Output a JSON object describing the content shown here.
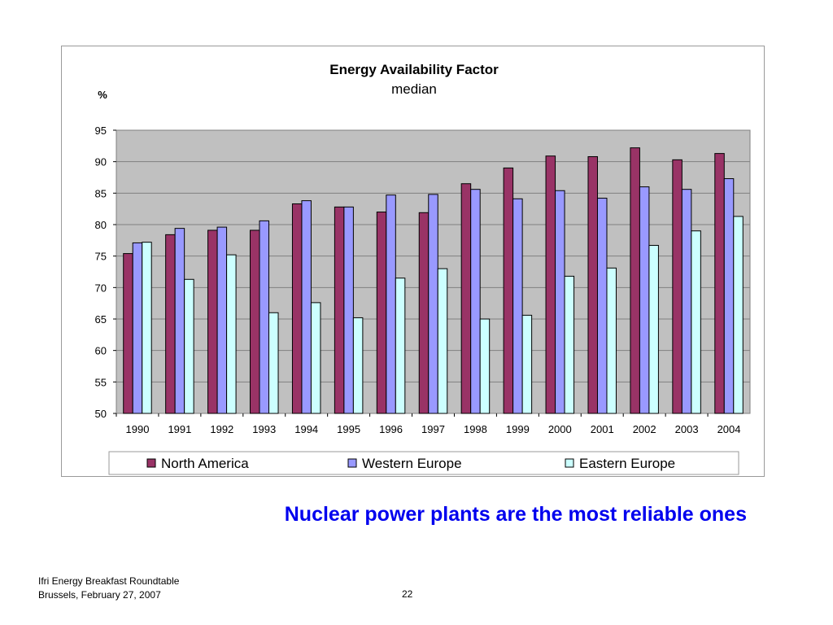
{
  "chart_data": {
    "type": "bar",
    "title": "Energy Availability Factor",
    "subtitle": "median",
    "ylabel": "%",
    "xlabel": "",
    "ylim": [
      50,
      95
    ],
    "yticks": [
      50,
      55,
      60,
      65,
      70,
      75,
      80,
      85,
      90,
      95
    ],
    "grid": true,
    "legend": "bottom",
    "categories": [
      "1990",
      "1991",
      "1992",
      "1993",
      "1994",
      "1995",
      "1996",
      "1997",
      "1998",
      "1999",
      "2000",
      "2001",
      "2002",
      "2003",
      "2004"
    ],
    "series": [
      {
        "name": "North America",
        "color": "#993366",
        "values": [
          75.4,
          78.4,
          79.1,
          79.1,
          83.3,
          82.8,
          82.0,
          81.9,
          86.5,
          89.0,
          90.9,
          90.8,
          92.2,
          90.3,
          91.3
        ]
      },
      {
        "name": "Western Europe",
        "color": "#9999ff",
        "values": [
          77.1,
          79.4,
          79.6,
          80.6,
          83.8,
          82.8,
          84.7,
          84.8,
          85.6,
          84.1,
          85.4,
          84.2,
          86.0,
          85.6,
          87.3
        ]
      },
      {
        "name": "Eastern Europe",
        "color": "#ccffff",
        "values": [
          77.2,
          71.3,
          75.2,
          66.0,
          67.6,
          65.2,
          71.5,
          73.0,
          65.0,
          65.6,
          71.8,
          73.1,
          76.7,
          79.0,
          81.3
        ]
      }
    ],
    "plot_background": "#c0c0c0"
  },
  "headline": "Nuclear power plants are the most reliable ones",
  "footer": {
    "line1": "Ifri Energy Breakfast Roundtable",
    "line2": "Brussels, February 27, 2007",
    "page": "22"
  },
  "colors": {
    "headline": "#0000ee"
  }
}
